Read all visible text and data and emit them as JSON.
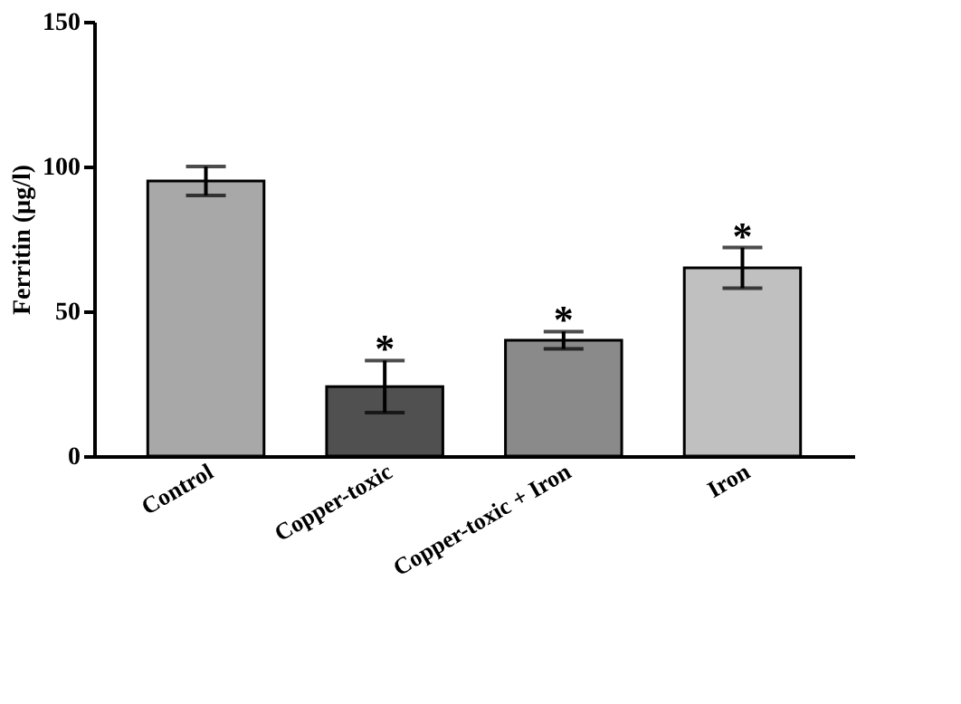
{
  "chart_data": {
    "type": "bar",
    "ylabel": "Ferritin (µg/l)",
    "categories": [
      "Control",
      "Copper-toxic",
      "Copper-toxic + Iron",
      "Iron"
    ],
    "values": [
      95,
      24,
      40,
      65
    ],
    "errors": [
      5,
      9,
      3,
      7
    ],
    "colors": [
      "#a8a8a8",
      "#505050",
      "#8a8a8a",
      "#c0c0c0"
    ],
    "ylim": [
      0,
      150
    ],
    "yticks": [
      0,
      50,
      100,
      150
    ],
    "grid": false,
    "annotations": [
      {
        "text": "*",
        "x": "Copper-toxic",
        "y": 33
      },
      {
        "text": "*",
        "x": "Copper-toxic + Iron",
        "y": 43
      },
      {
        "text": "*",
        "x": "Iron",
        "y": 72
      }
    ]
  }
}
